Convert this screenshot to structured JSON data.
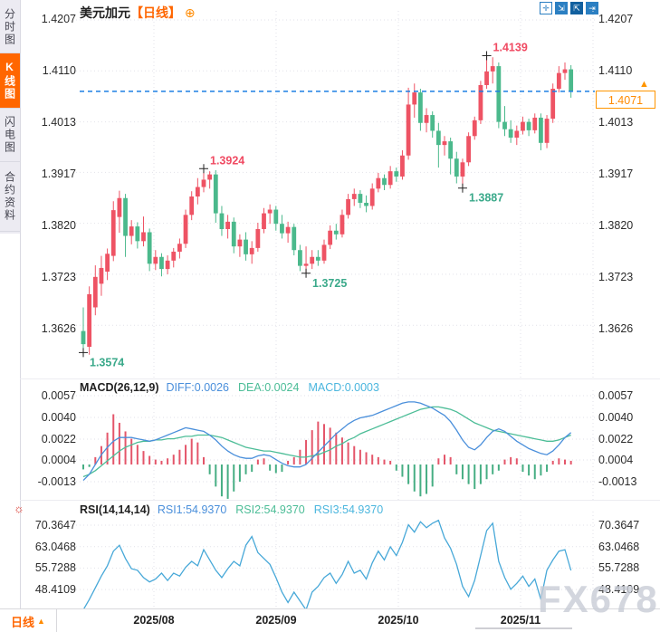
{
  "sidebar": {
    "items": [
      {
        "label": "分时图",
        "active": false
      },
      {
        "label": "K线图",
        "active": true
      },
      {
        "label": "闪电图",
        "active": false
      },
      {
        "label": "合约资料",
        "active": false
      }
    ]
  },
  "header": {
    "symbol": "美元加元",
    "period_tag": "【日线】",
    "plus_glyph": "⊕"
  },
  "toolbar": {
    "icons": [
      {
        "name": "crosshair-icon",
        "glyph": "✛"
      },
      {
        "name": "scale-axis-icon",
        "glyph": "⇲"
      },
      {
        "name": "auto-scale-icon",
        "glyph": "⇱"
      },
      {
        "name": "pan-right-icon",
        "glyph": "⇥"
      }
    ]
  },
  "main_chart": {
    "y_labels": [
      "1.4207",
      "1.4110",
      "1.4013",
      "1.3917",
      "1.3820",
      "1.3723",
      "1.3626"
    ],
    "current_price": "1.4071",
    "current_price_value": 1.4071,
    "annotations": [
      {
        "text": "1.3574",
        "side": "low"
      },
      {
        "text": "1.3924",
        "side": "high"
      },
      {
        "text": "1.3725",
        "side": "low"
      },
      {
        "text": "1.3887",
        "side": "low"
      },
      {
        "text": "1.4139",
        "side": "high"
      }
    ]
  },
  "macd": {
    "title": "MACD(26,12,9)",
    "diff": "DIFF:0.0026",
    "dea": "DEA:0.0024",
    "macd": "MACD:0.0003",
    "y_labels": [
      "0.0057",
      "0.0040",
      "0.0022",
      "0.0004",
      "-0.0013"
    ]
  },
  "rsi": {
    "title": "RSI(14,14,14)",
    "r1": "RSI1:54.9370",
    "r2": "RSI2:54.9370",
    "r3": "RSI3:54.9370",
    "y_labels": [
      "70.3647",
      "63.0468",
      "55.7288",
      "48.4109"
    ]
  },
  "x_axis": {
    "labels": [
      "2025/08",
      "2025/09",
      "2025/10",
      "2025/11"
    ],
    "period_label": "日线",
    "period_arrow": "▲"
  },
  "watermark": "FX678",
  "chart_data": [
    {
      "type": "candlestick",
      "title": "美元加元 日线",
      "ylabel": "price",
      "ylim": [
        1.353,
        1.424
      ],
      "y_ticks": [
        1.4207,
        1.411,
        1.4013,
        1.3917,
        1.382,
        1.3723,
        1.3626
      ],
      "x_ticks": [
        "2025/08",
        "2025/09",
        "2025/10",
        "2025/11"
      ],
      "current_price": 1.4071,
      "colors": {
        "up": "#ee5364",
        "down": "#4bb98c",
        "price_line": "#1d7fe3",
        "annotation_up": "#f04a62",
        "annotation_down": "#3aa98a",
        "marker": "#222222"
      },
      "markers": [
        {
          "index": 0,
          "side": "low",
          "price": 1.3574,
          "label": "1.3574"
        },
        {
          "index": 20,
          "side": "high",
          "price": 1.3924,
          "label": "1.3924"
        },
        {
          "index": 37,
          "side": "low",
          "price": 1.3725,
          "label": "1.3725"
        },
        {
          "index": 63,
          "side": "low",
          "price": 1.3887,
          "label": "1.3887"
        },
        {
          "index": 67,
          "side": "high",
          "price": 1.4139,
          "label": "1.4139"
        }
      ],
      "candles_ohlc": [
        [
          1.3615,
          1.366,
          1.3574,
          1.359
        ],
        [
          1.3585,
          1.37,
          1.357,
          1.3685
        ],
        [
          1.366,
          1.374,
          1.3645,
          1.3718
        ],
        [
          1.3705,
          1.3758,
          1.3682,
          1.3735
        ],
        [
          1.3728,
          1.3772,
          1.3712,
          1.3762
        ],
        [
          1.3758,
          1.3862,
          1.3748,
          1.3845
        ],
        [
          1.3832,
          1.3882,
          1.3802,
          1.3868
        ],
        [
          1.3868,
          1.3876,
          1.3756,
          1.3796
        ],
        [
          1.3796,
          1.3826,
          1.378,
          1.3814
        ],
        [
          1.3814,
          1.3822,
          1.3772,
          1.3786
        ],
        [
          1.3786,
          1.3833,
          1.3776,
          1.3803
        ],
        [
          1.3803,
          1.381,
          1.3729,
          1.3743
        ],
        [
          1.3743,
          1.3769,
          1.3731,
          1.3756
        ],
        [
          1.3756,
          1.3763,
          1.3719,
          1.3733
        ],
        [
          1.3733,
          1.3759,
          1.3723,
          1.3749
        ],
        [
          1.3749,
          1.3773,
          1.3736,
          1.3766
        ],
        [
          1.3766,
          1.3791,
          1.3753,
          1.3781
        ],
        [
          1.3781,
          1.3846,
          1.3773,
          1.3836
        ],
        [
          1.3836,
          1.3881,
          1.3826,
          1.3871
        ],
        [
          1.3871,
          1.3906,
          1.3856,
          1.3889
        ],
        [
          1.3889,
          1.3924,
          1.3879,
          1.3903
        ],
        [
          1.3903,
          1.3919,
          1.3886,
          1.3913
        ],
        [
          1.3913,
          1.3921,
          1.3821,
          1.3839
        ],
        [
          1.3839,
          1.3853,
          1.3796,
          1.3809
        ],
        [
          1.3809,
          1.3836,
          1.3791,
          1.3823
        ],
        [
          1.3823,
          1.3831,
          1.3763,
          1.3776
        ],
        [
          1.3776,
          1.3799,
          1.3756,
          1.3789
        ],
        [
          1.3789,
          1.3803,
          1.3749,
          1.3761
        ],
        [
          1.3761,
          1.3786,
          1.3743,
          1.3773
        ],
        [
          1.3773,
          1.3821,
          1.3766,
          1.3809
        ],
        [
          1.3809,
          1.3849,
          1.3801,
          1.3839
        ],
        [
          1.3839,
          1.3856,
          1.3819,
          1.3846
        ],
        [
          1.3846,
          1.3853,
          1.3806,
          1.3819
        ],
        [
          1.3819,
          1.3836,
          1.3791,
          1.3801
        ],
        [
          1.3801,
          1.3823,
          1.3783,
          1.3813
        ],
        [
          1.3813,
          1.3819,
          1.3759,
          1.3769
        ],
        [
          1.3769,
          1.3779,
          1.3729,
          1.3739
        ],
        [
          1.3739,
          1.3776,
          1.3725,
          1.3743
        ],
        [
          1.3743,
          1.3769,
          1.3733,
          1.3756
        ],
        [
          1.3756,
          1.3769,
          1.3739,
          1.3749
        ],
        [
          1.3749,
          1.3789,
          1.3743,
          1.3779
        ],
        [
          1.3779,
          1.3816,
          1.3771,
          1.3806
        ],
        [
          1.3806,
          1.3819,
          1.3789,
          1.3799
        ],
        [
          1.3799,
          1.3846,
          1.3793,
          1.3836
        ],
        [
          1.3836,
          1.3876,
          1.3829,
          1.3866
        ],
        [
          1.3866,
          1.3886,
          1.3853,
          1.3876
        ],
        [
          1.3876,
          1.3883,
          1.3849,
          1.3859
        ],
        [
          1.3859,
          1.3873,
          1.3841,
          1.3853
        ],
        [
          1.3853,
          1.3896,
          1.3846,
          1.3886
        ],
        [
          1.3886,
          1.3916,
          1.3879,
          1.3906
        ],
        [
          1.3906,
          1.3913,
          1.3883,
          1.3893
        ],
        [
          1.3893,
          1.3929,
          1.3886,
          1.3919
        ],
        [
          1.3919,
          1.3926,
          1.3899,
          1.3909
        ],
        [
          1.3909,
          1.3959,
          1.3903,
          1.3949
        ],
        [
          1.3949,
          1.4078,
          1.3941,
          1.4046
        ],
        [
          1.4046,
          1.4086,
          1.4021,
          1.4069
        ],
        [
          1.4069,
          1.4076,
          1.3996,
          1.4011
        ],
        [
          1.4011,
          1.4039,
          1.3993,
          1.4026
        ],
        [
          1.4026,
          1.4033,
          1.3983,
          1.3996
        ],
        [
          1.3996,
          1.4011,
          1.3926,
          1.3969
        ],
        [
          1.3969,
          1.3986,
          1.3949,
          1.3976
        ],
        [
          1.3976,
          1.3983,
          1.3913,
          1.3943
        ],
        [
          1.3943,
          1.3956,
          1.3896,
          1.3909
        ],
        [
          1.3909,
          1.3943,
          1.3887,
          1.3936
        ],
        [
          1.3936,
          1.3993,
          1.3929,
          1.3986
        ],
        [
          1.3986,
          1.4023,
          1.3979,
          1.4016
        ],
        [
          1.4016,
          1.4091,
          1.4009,
          1.4083
        ],
        [
          1.4083,
          1.4139,
          1.4076,
          1.4109
        ],
        [
          1.4109,
          1.4136,
          1.4086,
          1.4119
        ],
        [
          1.4119,
          1.4126,
          1.4001,
          1.4013
        ],
        [
          1.4013,
          1.4043,
          1.3986,
          1.3999
        ],
        [
          1.3999,
          1.4016,
          1.3973,
          1.3983
        ],
        [
          1.3983,
          1.4006,
          1.3969,
          1.3996
        ],
        [
          1.3996,
          1.4023,
          1.3989,
          1.4013
        ],
        [
          1.4013,
          1.4019,
          1.3986,
          1.3997
        ],
        [
          1.3997,
          1.4029,
          1.3991,
          1.4021
        ],
        [
          1.4021,
          1.4029,
          1.3959,
          1.3973
        ],
        [
          1.3973,
          1.4026,
          1.3963,
          1.4019
        ],
        [
          1.4019,
          1.4086,
          1.4011,
          1.4076
        ],
        [
          1.4076,
          1.4119,
          1.4069,
          1.4106
        ],
        [
          1.4106,
          1.4126,
          1.4093,
          1.4113
        ],
        [
          1.4113,
          1.4121,
          1.4059,
          1.4071
        ]
      ]
    },
    {
      "type": "bar",
      "title": "MACD(26,12,9)",
      "unit": 0.0001,
      "y_ticks": [
        0.0057,
        0.004,
        0.0022,
        0.0004,
        -0.0013
      ],
      "latest": {
        "DIFF": 0.0026,
        "DEA": 0.0024,
        "MACD": 0.0003
      },
      "colors": {
        "diff": "#4a8fdb",
        "dea": "#4cbd97",
        "hist_pos": "#e4566a",
        "hist_neg": "#46ae83"
      },
      "histogram_x1e4": [
        -4,
        -2,
        6,
        15,
        26,
        41,
        34,
        27,
        21,
        16,
        11,
        7,
        4,
        3,
        5,
        8,
        12,
        16,
        21,
        18,
        6,
        -8,
        -18,
        -26,
        -28,
        -22,
        -14,
        -8,
        -6,
        4,
        5,
        -5,
        -7,
        -6,
        3,
        6,
        12,
        20,
        28,
        35,
        33,
        30,
        26,
        22,
        18,
        15,
        12,
        10,
        8,
        6,
        4,
        3,
        -5,
        -10,
        -16,
        -22,
        -26,
        -24,
        -18,
        5,
        8,
        6,
        -8,
        -12,
        -16,
        -20,
        -16,
        -12,
        -8,
        -5,
        4,
        6,
        5,
        -6,
        -9,
        -12,
        -9,
        -6,
        3,
        5,
        4,
        3
      ],
      "diff_x1e4": [
        -13,
        -8,
        0,
        8,
        14,
        19,
        22,
        22,
        22,
        21,
        20,
        19,
        20,
        22,
        24,
        26,
        28,
        30,
        29,
        28,
        27,
        24,
        20,
        15,
        11,
        8,
        6,
        5,
        5,
        7,
        8,
        7,
        4,
        1,
        -1,
        -2,
        -2,
        0,
        5,
        10,
        15,
        20,
        25,
        29,
        33,
        36,
        38,
        39,
        40,
        42,
        44,
        46,
        48,
        50,
        51,
        51,
        50,
        48,
        46,
        43,
        40,
        35,
        28,
        20,
        14,
        12,
        16,
        22,
        27,
        29,
        27,
        23,
        19,
        16,
        13,
        11,
        9,
        8,
        11,
        16,
        22,
        26
      ],
      "dea_x1e4": [
        -10,
        -8,
        -5,
        -1,
        3,
        7,
        11,
        14,
        16,
        18,
        19,
        19,
        20,
        20,
        21,
        21,
        22,
        23,
        23,
        24,
        24,
        24,
        23,
        22,
        20,
        18,
        16,
        14,
        13,
        12,
        11,
        11,
        10,
        9,
        8,
        7,
        6,
        6,
        7,
        8,
        10,
        12,
        15,
        17,
        20,
        22,
        25,
        27,
        29,
        31,
        33,
        35,
        37,
        39,
        41,
        43,
        45,
        46,
        47,
        47,
        46,
        45,
        43,
        40,
        37,
        34,
        32,
        30,
        28,
        27,
        26,
        25,
        24,
        23,
        22,
        21,
        20,
        19,
        19,
        20,
        22,
        24
      ]
    },
    {
      "type": "line",
      "title": "RSI(14,14,14)",
      "y_ticks": [
        70.3647,
        63.0468,
        55.7288,
        48.4109
      ],
      "latest": {
        "RSI1": 54.937,
        "RSI2": 54.937,
        "RSI3": 54.937
      },
      "colors": {
        "line": "#47a8d8"
      },
      "values": [
        41.5,
        45,
        49,
        53,
        56.5,
        61.5,
        63.5,
        59,
        55.5,
        55,
        52.5,
        51,
        52,
        54,
        51.5,
        54,
        53,
        56,
        58,
        56.5,
        62,
        58.5,
        55,
        52.5,
        55.5,
        58,
        56.5,
        63.5,
        66.5,
        61,
        59,
        57,
        52.5,
        47.5,
        44,
        47.5,
        44.5,
        41.5,
        47.5,
        49.5,
        52.5,
        54,
        50.5,
        53.5,
        58,
        54,
        55,
        52,
        57.5,
        61.5,
        58.5,
        63,
        60,
        64.5,
        70.5,
        68,
        71.5,
        69.5,
        71,
        72,
        66,
        62.5,
        57,
        49.5,
        46,
        51.5,
        60,
        68.5,
        71,
        58,
        52.5,
        48.5,
        50.5,
        53,
        49.5,
        52,
        45,
        55,
        58.5,
        61.5,
        62,
        54.94
      ]
    }
  ]
}
